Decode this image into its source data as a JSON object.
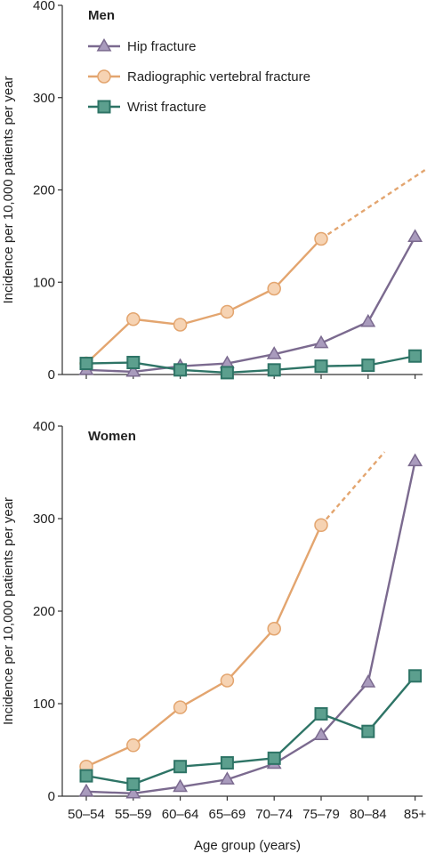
{
  "chart_data": [
    {
      "type": "line",
      "title": "Men",
      "ylabel": "Incidence per 10,000 patients per year",
      "xlabel": "",
      "categories": [
        "50–54",
        "55–59",
        "60–64",
        "65–69",
        "70–74",
        "75–79",
        "80–84",
        "85+"
      ],
      "ylim": [
        0,
        400
      ],
      "yticks": [
        "0",
        "100",
        "200",
        "300",
        "400"
      ],
      "grid": false,
      "legend": "top-left",
      "series": [
        {
          "name": "Hip fracture",
          "marker": "triangle",
          "color": "#7b6a8f",
          "fill": "#a99bbd",
          "values": [
            5,
            3,
            9,
            12,
            22,
            34,
            57,
            149
          ]
        },
        {
          "name": "Radiographic vertebral fracture",
          "marker": "circle",
          "color": "#e3a56f",
          "fill": "#f6d3b3",
          "values": [
            12,
            60,
            54,
            68,
            93,
            147,
            null,
            null
          ],
          "extrapolated_to": [
            7.4,
            228
          ]
        },
        {
          "name": "Wrist fracture",
          "marker": "square",
          "color": "#2e7466",
          "fill": "#5c9f8e",
          "values": [
            12,
            13,
            5,
            2,
            5,
            9,
            10,
            20
          ]
        }
      ]
    },
    {
      "type": "line",
      "title": "Women",
      "ylabel": "Incidence per 10,000 patients per year",
      "xlabel": "Age group (years)",
      "categories": [
        "50–54",
        "55–59",
        "60–64",
        "65–69",
        "70–74",
        "75–79",
        "80–84",
        "85+"
      ],
      "ylim": [
        0,
        400
      ],
      "yticks": [
        "0",
        "100",
        "200",
        "300",
        "400"
      ],
      "grid": false,
      "legend": "none",
      "series": [
        {
          "name": "Hip fracture",
          "marker": "triangle",
          "color": "#7b6a8f",
          "fill": "#a99bbd",
          "values": [
            5,
            3,
            10,
            18,
            35,
            66,
            123,
            362
          ]
        },
        {
          "name": "Radiographic vertebral fracture",
          "marker": "circle",
          "color": "#e3a56f",
          "fill": "#f6d3b3",
          "values": [
            32,
            55,
            96,
            125,
            181,
            293,
            null,
            null
          ],
          "extrapolated_to": [
            6.35,
            372
          ]
        },
        {
          "name": "Wrist fracture",
          "marker": "square",
          "color": "#2e7466",
          "fill": "#5c9f8e",
          "values": [
            22,
            13,
            32,
            36,
            41,
            89,
            70,
            130
          ]
        }
      ]
    }
  ]
}
